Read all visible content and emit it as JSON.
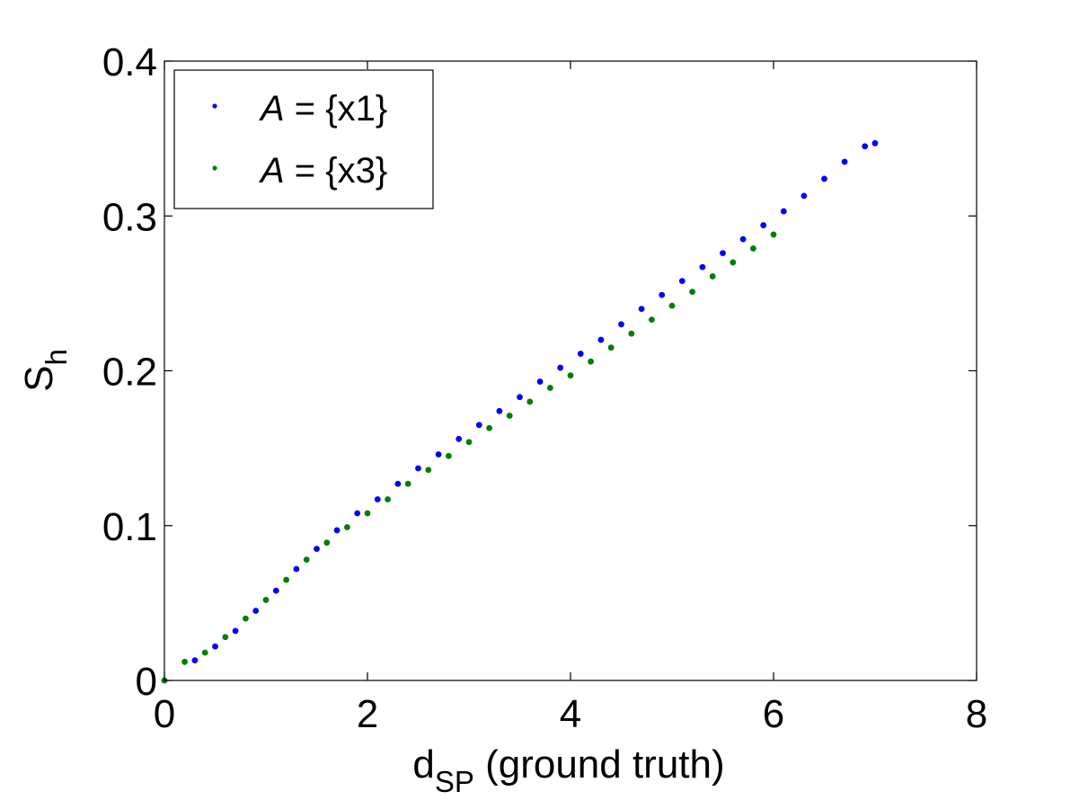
{
  "chart_data": {
    "type": "scatter",
    "xlabel": {
      "base": "d",
      "subscript": "SP",
      "rest": " (ground truth)"
    },
    "ylabel": {
      "base": "S",
      "subscript": "h"
    },
    "xlim": [
      0,
      8
    ],
    "ylim": [
      0,
      0.4
    ],
    "x_ticks": [
      0,
      2,
      4,
      6,
      8
    ],
    "x_tick_labels": [
      "0",
      "2",
      "4",
      "6",
      "8"
    ],
    "y_ticks": [
      0,
      0.1,
      0.2,
      0.3,
      0.4
    ],
    "y_tick_labels": [
      "0",
      "0.1",
      "0.2",
      "0.3",
      "0.4"
    ],
    "grid": false,
    "legend_position": "top-left",
    "series": [
      {
        "name": "A = {x1}",
        "name_parts": {
          "italic": "A",
          "rest": " = {x1}"
        },
        "color": "#0000ff",
        "points": [
          [
            0.0,
            0.0
          ],
          [
            0.3,
            0.013
          ],
          [
            0.5,
            0.022
          ],
          [
            0.7,
            0.032
          ],
          [
            0.9,
            0.045
          ],
          [
            1.1,
            0.058
          ],
          [
            1.3,
            0.072
          ],
          [
            1.5,
            0.085
          ],
          [
            1.7,
            0.097
          ],
          [
            1.9,
            0.108
          ],
          [
            2.1,
            0.117
          ],
          [
            2.3,
            0.127
          ],
          [
            2.5,
            0.137
          ],
          [
            2.7,
            0.146
          ],
          [
            2.9,
            0.156
          ],
          [
            3.1,
            0.165
          ],
          [
            3.3,
            0.174
          ],
          [
            3.5,
            0.183
          ],
          [
            3.7,
            0.193
          ],
          [
            3.9,
            0.202
          ],
          [
            4.1,
            0.211
          ],
          [
            4.3,
            0.22
          ],
          [
            4.5,
            0.23
          ],
          [
            4.7,
            0.24
          ],
          [
            4.9,
            0.249
          ],
          [
            5.1,
            0.258
          ],
          [
            5.3,
            0.267
          ],
          [
            5.5,
            0.276
          ],
          [
            5.7,
            0.285
          ],
          [
            5.9,
            0.294
          ],
          [
            6.1,
            0.303
          ],
          [
            6.3,
            0.313
          ],
          [
            6.5,
            0.324
          ],
          [
            6.7,
            0.335
          ],
          [
            6.9,
            0.345
          ],
          [
            7.0,
            0.347
          ]
        ]
      },
      {
        "name": "A = {x3}",
        "name_parts": {
          "italic": "A",
          "rest": " = {x3}"
        },
        "color": "#007f00",
        "points": [
          [
            0.0,
            0.0
          ],
          [
            0.2,
            0.012
          ],
          [
            0.4,
            0.018
          ],
          [
            0.6,
            0.028
          ],
          [
            0.8,
            0.04
          ],
          [
            1.0,
            0.052
          ],
          [
            1.2,
            0.065
          ],
          [
            1.4,
            0.078
          ],
          [
            1.6,
            0.089
          ],
          [
            1.8,
            0.099
          ],
          [
            2.0,
            0.108
          ],
          [
            2.2,
            0.117
          ],
          [
            2.4,
            0.127
          ],
          [
            2.6,
            0.136
          ],
          [
            2.8,
            0.145
          ],
          [
            3.0,
            0.154
          ],
          [
            3.2,
            0.163
          ],
          [
            3.4,
            0.171
          ],
          [
            3.6,
            0.18
          ],
          [
            3.8,
            0.189
          ],
          [
            4.0,
            0.197
          ],
          [
            4.2,
            0.206
          ],
          [
            4.4,
            0.215
          ],
          [
            4.6,
            0.224
          ],
          [
            4.8,
            0.233
          ],
          [
            5.0,
            0.242
          ],
          [
            5.2,
            0.251
          ],
          [
            5.4,
            0.261
          ],
          [
            5.6,
            0.27
          ],
          [
            5.8,
            0.279
          ],
          [
            6.0,
            0.288
          ]
        ]
      }
    ]
  }
}
